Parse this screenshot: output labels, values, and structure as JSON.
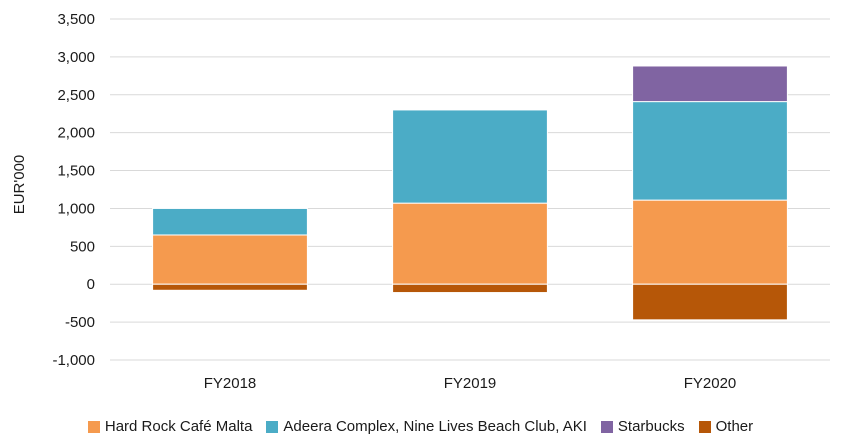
{
  "chart_data": {
    "type": "bar",
    "stacked": true,
    "categories": [
      "FY2018",
      "FY2019",
      "FY2020"
    ],
    "series": [
      {
        "name": "Hard Rock Café Malta",
        "values": [
          650,
          1070,
          1110
        ],
        "color": "#f59a4e"
      },
      {
        "name": "Adeera Complex, Nine Lives Beach Club, AKI",
        "values": [
          350,
          1230,
          1300
        ],
        "color": "#4bacc6"
      },
      {
        "name": "Starbucks",
        "values": [
          0,
          0,
          470
        ],
        "color": "#8064a2"
      },
      {
        "name": "Other",
        "values": [
          -80,
          -110,
          -470
        ],
        "color": "#b65708"
      }
    ],
    "ylabel": "EUR'000",
    "ylim": [
      -1000,
      3500
    ],
    "yticks": [
      -1000,
      -500,
      0,
      500,
      1000,
      1500,
      2000,
      2500,
      3000,
      3500
    ],
    "ytick_labels": [
      "-1,000",
      "-500",
      "0",
      "500",
      "1,000",
      "1,500",
      "2,000",
      "2,500",
      "3,000",
      "3,500"
    ],
    "grid": true,
    "legend_position": "bottom"
  }
}
